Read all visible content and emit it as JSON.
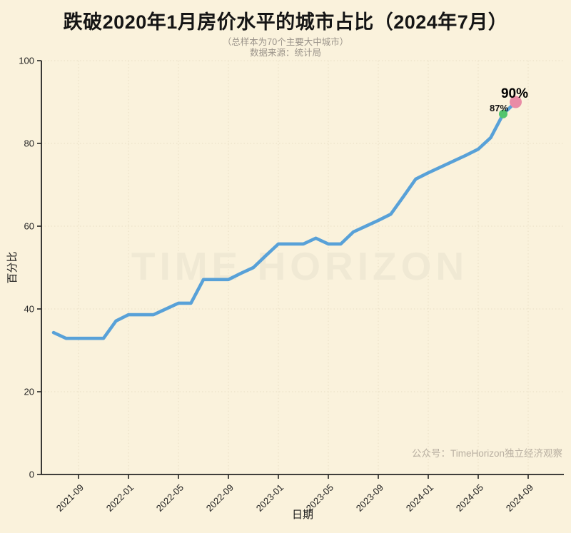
{
  "header": {
    "title": "跌破2020年1月房价水平的城市占比（2024年7月）",
    "subtitle": "（总样本为70个主要大中城市）",
    "source": "数据来源：统计局"
  },
  "caption": "公众号：TimeHorizon独立经济观察",
  "watermark": "TIME HORIZON",
  "colors": {
    "background": "#faf2dc",
    "line": "#58a1d8",
    "marker_2024_06": "#53c46e",
    "marker_2024_07": "#e98ca6",
    "grid": "#e8dec5",
    "axis": "#242424",
    "subtitle_gray": "#9a938a",
    "caption_gray": "#b8afa1"
  },
  "chart_data": {
    "type": "line",
    "title": "跌破2020年1月房价水平的城市占比（2024年7月）",
    "xlabel": "日期",
    "ylabel": "百分比",
    "ylim": [
      0,
      100
    ],
    "y_ticks": [
      0,
      20,
      40,
      60,
      80,
      100
    ],
    "x_ticks": [
      "2021-09",
      "2022-01",
      "2022-05",
      "2022-09",
      "2023-01",
      "2023-05",
      "2023-09",
      "2024-01",
      "2024-05",
      "2024-09"
    ],
    "grid": "dotted both axes",
    "legend_position": "none",
    "x": [
      "2021-06",
      "2021-07",
      "2021-08",
      "2021-09",
      "2021-10",
      "2021-11",
      "2021-12",
      "2022-01",
      "2022-02",
      "2022-03",
      "2022-04",
      "2022-05",
      "2022-06",
      "2022-07",
      "2022-08",
      "2022-09",
      "2022-10",
      "2022-11",
      "2022-12",
      "2023-01",
      "2023-02",
      "2023-03",
      "2023-04",
      "2023-05",
      "2023-06",
      "2023-07",
      "2023-08",
      "2023-09",
      "2023-10",
      "2023-11",
      "2023-12",
      "2024-01",
      "2024-02",
      "2024-03",
      "2024-04",
      "2024-05",
      "2024-06",
      "2024-07"
    ],
    "values": [
      34.3,
      32.9,
      32.9,
      32.9,
      32.9,
      37.1,
      38.6,
      38.6,
      38.6,
      40.0,
      41.4,
      41.4,
      47.1,
      47.1,
      47.1,
      48.6,
      50.0,
      52.9,
      55.7,
      55.7,
      55.7,
      57.1,
      55.7,
      55.7,
      58.6,
      60.0,
      61.4,
      62.9,
      67.1,
      71.4,
      72.9,
      74.3,
      75.7,
      77.1,
      78.6,
      81.4,
      87.1,
      90.0
    ],
    "annotations": [
      {
        "x": "2024-06",
        "value": 87.1,
        "label": "87%",
        "marker_color": "#53c46e",
        "marker_radius": 6
      },
      {
        "x": "2024-07",
        "value": 90.0,
        "label": "90%",
        "marker_color": "#e98ca6",
        "marker_radius": 8.5
      }
    ],
    "line_color": "#58a1d8"
  }
}
